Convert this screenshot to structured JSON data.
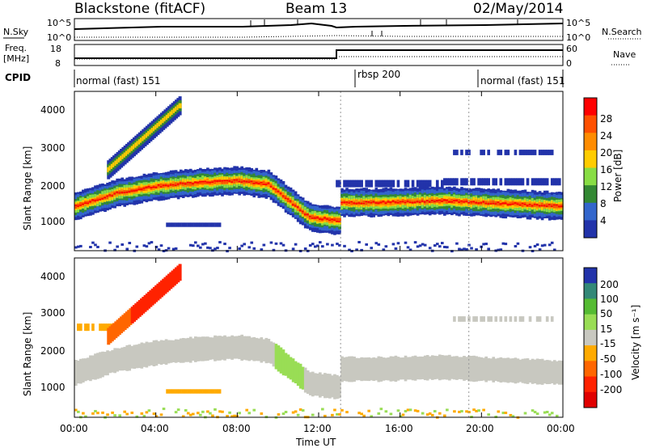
{
  "header": {
    "title": "Blackstone (fitACF)",
    "beam": "Beam 13",
    "date": "02/May/2014"
  },
  "top_panels": {
    "nsky_label": "N.Sky",
    "nsky_ticks": [
      "10^5",
      "10^0"
    ],
    "nsearch_label": "N.Search",
    "nsearch_ticks": [
      "10^5",
      "10^0"
    ],
    "freq_label": "Freq.",
    "freq_unit": "[MHz]",
    "freq_ticks": [
      "18",
      "8"
    ],
    "nave_label": "Nave",
    "nave_ticks": [
      "60",
      "0"
    ]
  },
  "cpid": {
    "label": "CPID",
    "segments": [
      "normal (fast) 151",
      "rbsp 200",
      "normal (fast) 151"
    ]
  },
  "x_axis": {
    "label": "Time UT",
    "ticks": [
      "00:00",
      "04:00",
      "08:00",
      "12:00",
      "16:00",
      "20:00",
      "00:00"
    ]
  },
  "chart_data": [
    {
      "type": "heatmap",
      "panel": "power",
      "ylabel": "Slant Range [km]",
      "yticks": [
        "4000",
        "3000",
        "2000",
        "1000"
      ],
      "colorbar_label": "Power [dB]",
      "colorbar_ticks": [
        "28",
        "24",
        "20",
        "16",
        "12",
        "8",
        "4"
      ],
      "colors": [
        "#ff0000",
        "#ff5000",
        "#ff8c00",
        "#ffcc00",
        "#88dd44",
        "#338833",
        "#3366cc",
        "#2233aa"
      ],
      "xlim_hours": [
        0,
        24
      ],
      "ylim_km": [
        180,
        4550
      ],
      "bands": [
        {
          "t": 0,
          "center": 1400
        },
        {
          "t": 2,
          "center": 1750
        },
        {
          "t": 4,
          "center": 1950
        },
        {
          "t": 6,
          "center": 2050
        },
        {
          "t": 8,
          "center": 2100
        },
        {
          "t": 9.5,
          "center": 2000
        },
        {
          "t": 10.5,
          "center": 1550
        },
        {
          "t": 11.5,
          "center": 1100
        },
        {
          "t": 13,
          "center": 1000
        },
        {
          "t": 13.05,
          "center": 1500
        },
        {
          "t": 15,
          "center": 1500
        },
        {
          "t": 18,
          "center": 1550
        },
        {
          "t": 20,
          "center": 1500
        },
        {
          "t": 22,
          "center": 1450
        },
        {
          "t": 24,
          "center": 1400
        }
      ]
    },
    {
      "type": "heatmap",
      "panel": "velocity",
      "ylabel": "Slant Range [km]",
      "yticks": [
        "4000",
        "3000",
        "2000",
        "1000"
      ],
      "colorbar_label": "Velocity [m s⁻¹]",
      "colorbar_ticks": [
        "200",
        "100",
        "50",
        "15",
        "-15",
        "-50",
        "-100",
        "-200"
      ],
      "colors": [
        "#2233aa",
        "#338877",
        "#55bb33",
        "#99dd55",
        "#c8c8c0",
        "#ffaa00",
        "#ff6600",
        "#ff2200",
        "#e00000"
      ],
      "xlim_hours": [
        0,
        24
      ],
      "ylim_km": [
        180,
        4550
      ]
    }
  ]
}
